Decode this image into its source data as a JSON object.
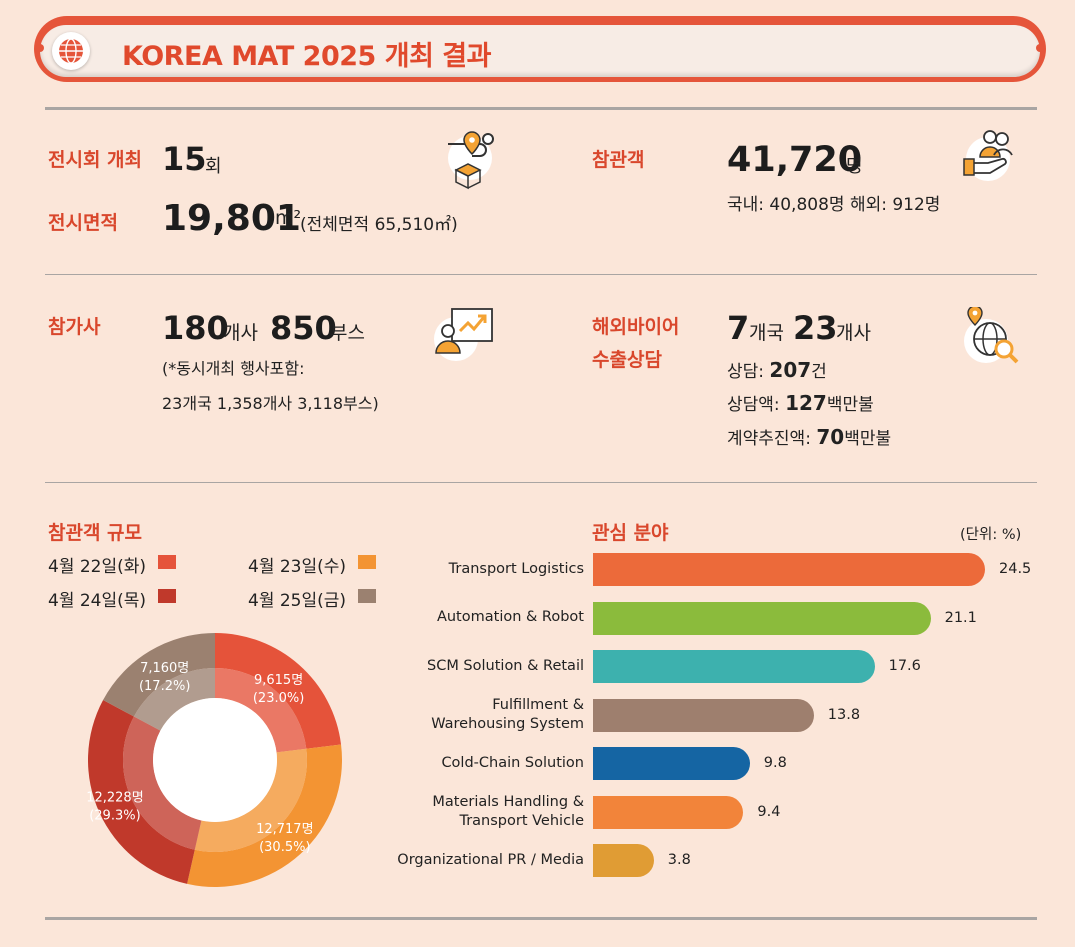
{
  "header": {
    "title": "KOREA MAT 2025 개최 결과"
  },
  "stats": {
    "exhibitions": {
      "label": "전시회 개최",
      "value": "15",
      "unit": "회"
    },
    "area": {
      "label": "전시면적",
      "value": "19,801",
      "unit": "m²",
      "note": "(전체면적 65,510㎡)"
    },
    "visitors": {
      "label": "참관객",
      "value": "41,720",
      "unit": "명",
      "detail": "국내: 40,808명 해외: 912명"
    },
    "participants": {
      "label": "참가사",
      "value1": "180",
      "unit1": "개사",
      "value2": "850",
      "unit2": "부스",
      "note1": "(*동시개최 행사포함:",
      "note2": "23개국 1,358개사 3,118부스)"
    },
    "buyers": {
      "label1": "해외바이어",
      "label2": "수출상담",
      "value1": "7",
      "unit1": "개국",
      "value2": "23",
      "unit2": "개사",
      "consult_label": "상담:",
      "consult_value": "207",
      "consult_unit": "건",
      "amount_label": "상담액:",
      "amount_value": "127",
      "amount_unit": "백만불",
      "contract_label": "계약추진액:",
      "contract_value": "70",
      "contract_unit": "백만불"
    }
  },
  "visitor_chart_title": "참관객 규모",
  "interest_chart_title": "관심 분야",
  "unit_note": "(단위: %)",
  "colors": {
    "accent": "#d9472c",
    "banner": "#e5553a",
    "background": "#fbe6d9"
  },
  "chart_data": [
    {
      "type": "pie",
      "title": "참관객 규모",
      "categories": [
        "4월 22일(화)",
        "4월 23일(수)",
        "4월 24일(목)",
        "4월 25일(금)"
      ],
      "values": [
        9615,
        12717,
        12228,
        7160
      ],
      "percentages": [
        23.0,
        30.5,
        29.3,
        17.2
      ],
      "data_labels": [
        [
          "9,615명",
          "(23.0%)"
        ],
        [
          "12,717명",
          "(30.5%)"
        ],
        [
          "12,228명",
          "(29.3%)"
        ],
        [
          "7,160명",
          "(17.2%)"
        ]
      ],
      "colors": [
        "#e5533a",
        "#f39433",
        "#c0392b",
        "#9b8170"
      ],
      "legend": "top"
    },
    {
      "type": "bar",
      "orientation": "horizontal",
      "title": "관심 분야",
      "unit": "(단위: %)",
      "categories": [
        [
          "Transport Logistics"
        ],
        [
          "Automation & Robot"
        ],
        [
          "SCM Solution & Retail"
        ],
        [
          "Fulfillment &",
          "Warehousing System"
        ],
        [
          "Cold-Chain Solution"
        ],
        [
          "Materials Handling &",
          "Transport Vehicle"
        ],
        [
          "Organizational PR / Media"
        ]
      ],
      "values": [
        24.5,
        21.1,
        17.6,
        13.8,
        9.8,
        9.4,
        3.8
      ],
      "value_labels": [
        "24.5",
        "21.1",
        "17.6",
        "13.8",
        "9.8",
        "9.4",
        "3.8"
      ],
      "colors": [
        "#ec6a3a",
        "#8bbb3c",
        "#3db1ae",
        "#9e7f6e",
        "#1565a3",
        "#f2843a",
        "#e09c34"
      ],
      "xlim": [
        0,
        25
      ]
    }
  ]
}
